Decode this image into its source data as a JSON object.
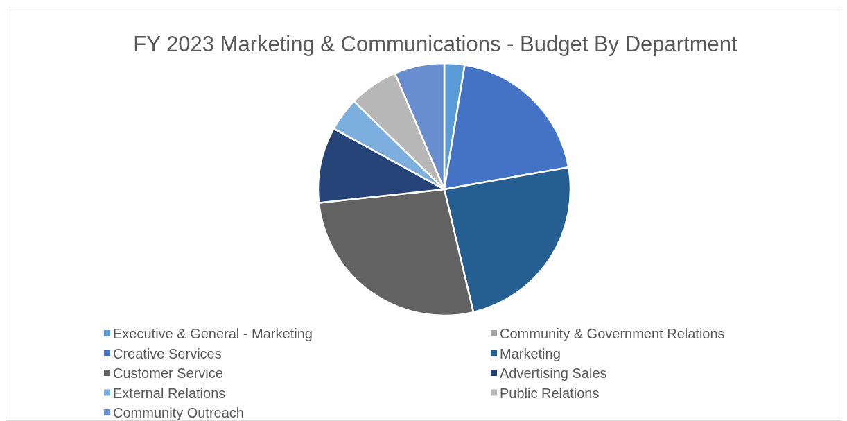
{
  "chart_data": {
    "type": "pie",
    "title": "FY 2023 Marketing & Communications - Budget By Department",
    "categories": [
      "Executive & General - Marketing",
      "Community & Government Relations",
      "Creative Services",
      "Marketing",
      "Customer Service",
      "Advertising Sales",
      "External Relations",
      "Public Relations",
      "Community Outreach"
    ],
    "values": [
      2.6,
      0,
      19.6,
      24.1,
      27,
      9.7,
      4.3,
      6.3,
      6.4
    ],
    "colors": [
      "#5b9bd5",
      "#a5a5a5",
      "#4472c4",
      "#255e91",
      "#636363",
      "#264478",
      "#7cafdd",
      "#b7b7b7",
      "#698ed0"
    ],
    "legend": "bottom"
  }
}
